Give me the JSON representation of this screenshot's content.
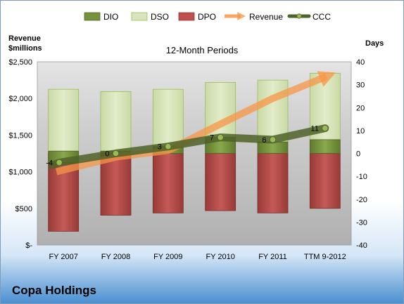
{
  "company": "Copa Holdings",
  "chart_data": {
    "type": "bar",
    "title": "12-Month Periods",
    "left_axis_label_line1": "Revenue",
    "left_axis_label_line2": "$millions",
    "right_axis_label": "Days",
    "categories": [
      "FY 2007",
      "FY 2008",
      "FY 2009",
      "FY 2010",
      "FY 2011",
      "TTM 9-2012"
    ],
    "ylim_days": [
      -40,
      40
    ],
    "ylim_revenue": [
      0,
      2500
    ],
    "left_tick_labels": [
      "$2,500",
      "$2,000",
      "$1,500",
      "$1,000",
      "$500",
      "$-"
    ],
    "left_tick_values": [
      2500,
      2000,
      1500,
      1000,
      500,
      0
    ],
    "right_tick_values": [
      40,
      30,
      20,
      10,
      0,
      -10,
      -20,
      -30,
      -40
    ],
    "series": [
      {
        "name": "DIO",
        "color": "#76923c",
        "bottom": [
          -4,
          0,
          0,
          0,
          0,
          0
        ],
        "top": [
          1,
          1,
          3,
          7,
          5,
          6
        ]
      },
      {
        "name": "DSO",
        "color": "#d7e4bd",
        "bottom": [
          1,
          1,
          3,
          7,
          5,
          6
        ],
        "top": [
          28,
          27,
          28,
          31,
          32,
          35
        ]
      },
      {
        "name": "DPO",
        "color": "#c0504d",
        "bottom": [
          -34,
          -27,
          -26,
          -25,
          -26,
          -24
        ],
        "top": [
          0,
          0,
          0,
          0,
          0,
          0
        ]
      }
    ],
    "revenue": {
      "name": "Revenue",
      "color": "#f79646",
      "values": [
        1000,
        1200,
        1290,
        1650,
        2000,
        2300
      ]
    },
    "ccc": {
      "name": "CCC",
      "color": "#4f6228",
      "values": [
        -4,
        0,
        3,
        7,
        6,
        11
      ],
      "labels": [
        "-4",
        "0",
        "3",
        "7",
        "6",
        "11"
      ]
    },
    "legend": [
      "DIO",
      "DSO",
      "DPO",
      "Revenue",
      "CCC"
    ],
    "legend_position": "top",
    "grid": false
  }
}
